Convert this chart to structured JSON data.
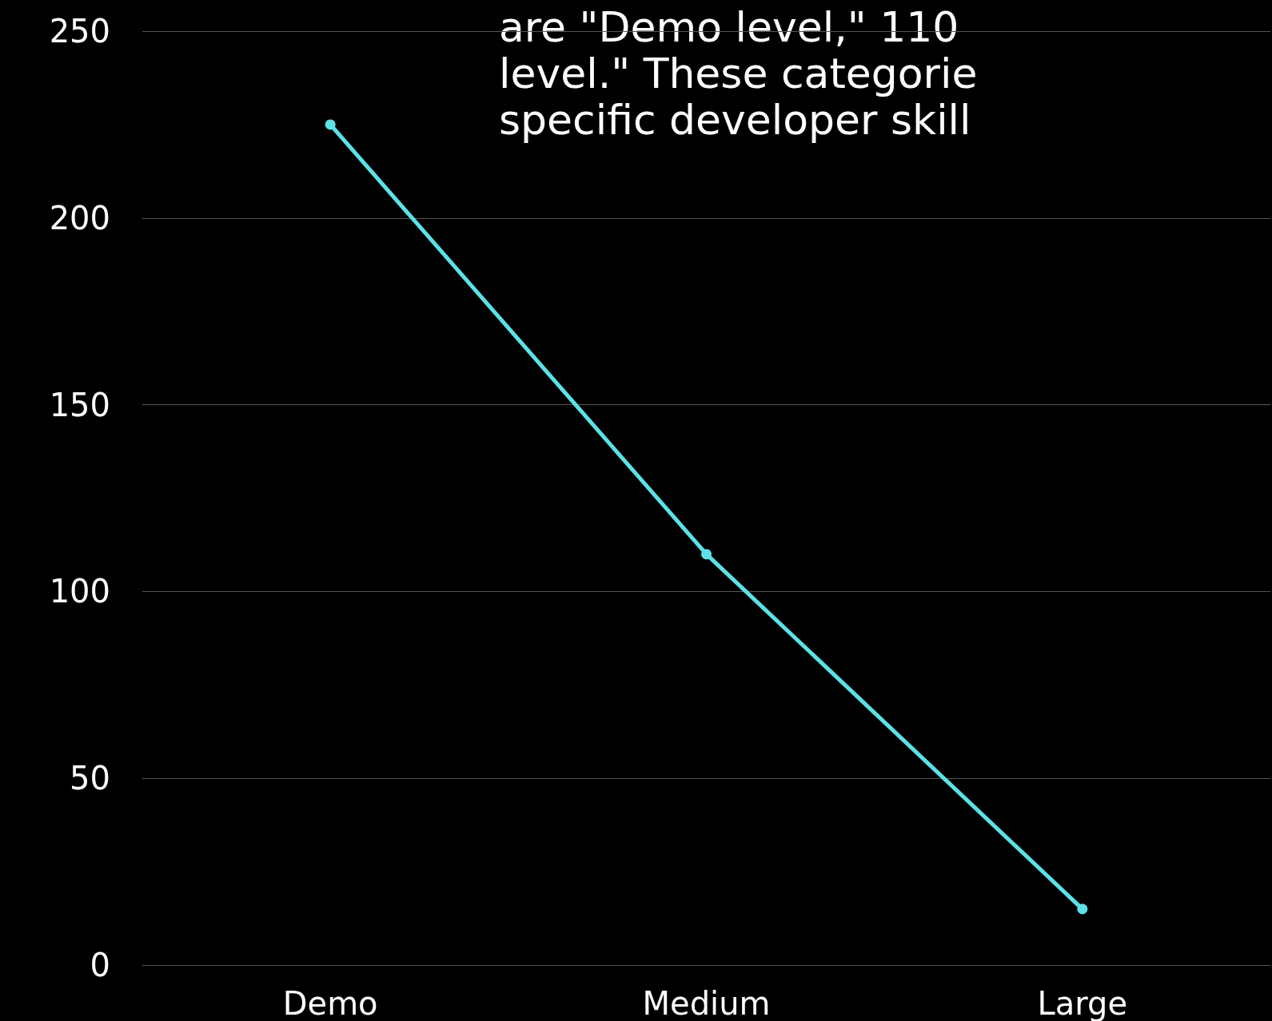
{
  "chart_data": {
    "type": "line",
    "categories": [
      "Demo",
      "Medium",
      "Large"
    ],
    "series": [
      {
        "color": "#5ce1e6",
        "values": [
          225,
          110,
          15
        ]
      }
    ],
    "ylim": [
      0,
      250
    ],
    "yticks": [
      0,
      50,
      100,
      150,
      200,
      250
    ],
    "grid": "y",
    "marker": "circle",
    "line_style": "solid",
    "annotations": [
      "are \"Demo level,\" 110",
      "level.\" These categorie",
      "specific developer skill"
    ]
  }
}
